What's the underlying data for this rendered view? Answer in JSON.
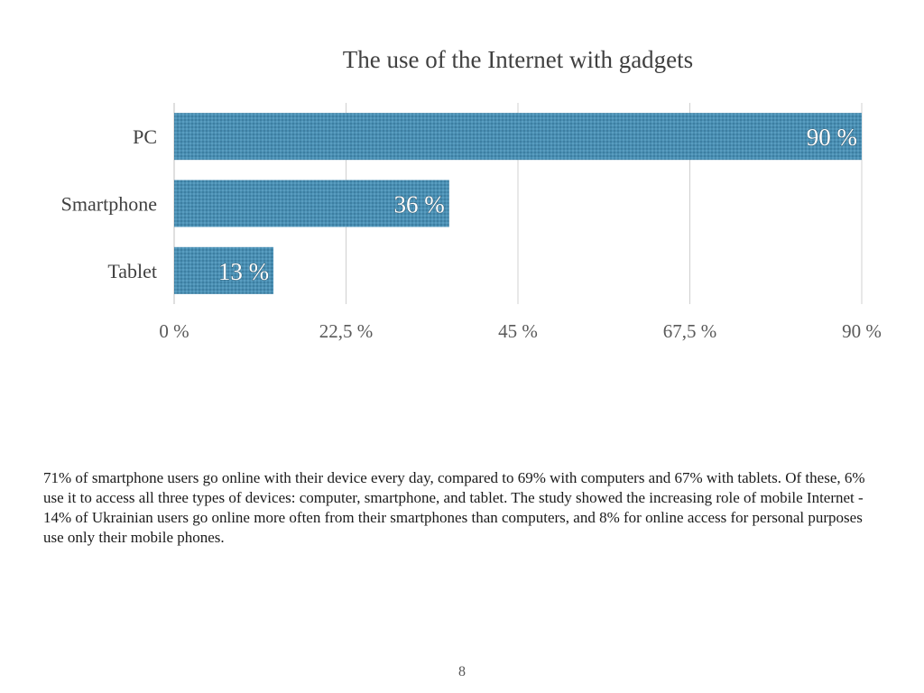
{
  "chart_data": {
    "type": "bar",
    "orientation": "horizontal",
    "title": "The use of the Internet with gadgets",
    "categories": [
      "PC",
      "Smartphone",
      "Tablet"
    ],
    "values": [
      90,
      36,
      13
    ],
    "data_labels": [
      "90 %",
      "36 %",
      "13 %"
    ],
    "xlim": [
      0,
      90
    ],
    "x_ticks": [
      0,
      22.5,
      45,
      67.5,
      90
    ],
    "x_tick_labels": [
      "0 %",
      "22,5 %",
      "45 %",
      "67,5 %",
      "90 %"
    ],
    "grid": true,
    "legend": "none",
    "bar_color": "#4a8fb3"
  },
  "slide": {
    "body_text": "71% of smartphone users go online with their device every day, compared to 69% with computers and 67% with tablets. Of these, 6% use it to access all three types of devices: computer, smartphone, and tablet. The study showed the increasing role of mobile Internet - 14% of Ukrainian users go online more often from their smartphones than computers, and 8% for online access for personal purposes use only their mobile phones.",
    "page_number": "8"
  }
}
